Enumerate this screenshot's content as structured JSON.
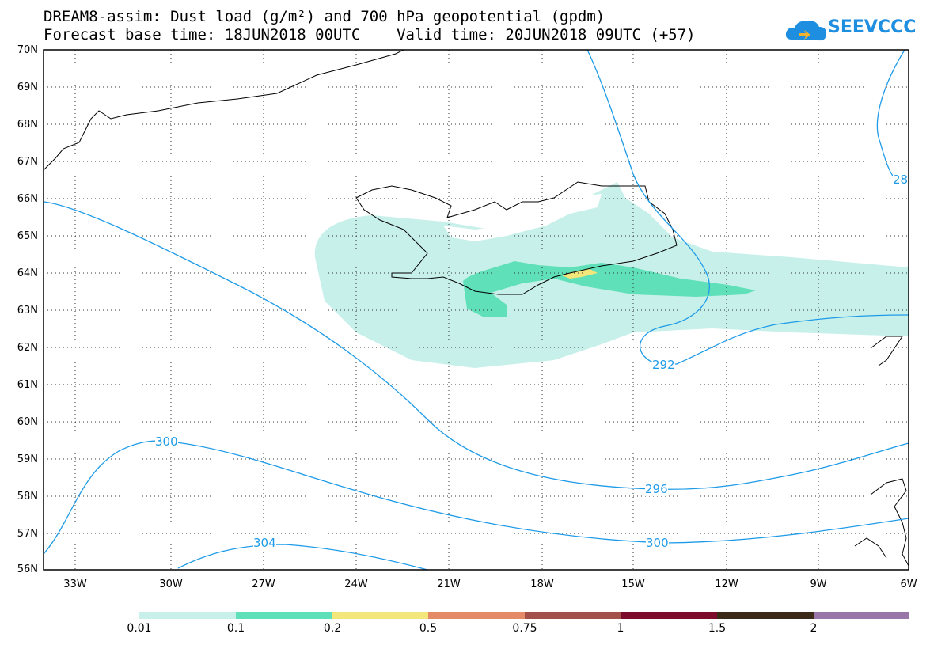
{
  "title": {
    "line1": "DREAM8-assim: Dust load (g/m²) and 700 hPa geopotential (gpdm)",
    "line2": "Forecast base time: 18JUN2018 00UTC    Valid time: 20JUN2018 09UTC (+57)"
  },
  "logo": {
    "text": "SEEVCCC",
    "icon": "cloud-logo-icon",
    "color": "#1e8fe0"
  },
  "map": {
    "lat_labels": [
      "70N",
      "69N",
      "68N",
      "67N",
      "66N",
      "65N",
      "64N",
      "63N",
      "62N",
      "61N",
      "60N",
      "59N",
      "58N",
      "57N",
      "56N"
    ],
    "lon_labels": [
      "33W",
      "30W",
      "27W",
      "24W",
      "21W",
      "18W",
      "15W",
      "12W",
      "9W",
      "6W"
    ],
    "contour_labels": {
      "c292": "292",
      "c296": "296",
      "c300a": "300",
      "c300b": "300",
      "c304": "304",
      "c28": "28"
    },
    "contour_color": "#1e9be8"
  },
  "colorbar": {
    "labels": [
      "0.01",
      "0.1",
      "0.2",
      "0.5",
      "0.75",
      "1",
      "1.5",
      "2"
    ],
    "colors": [
      "#c6f0e9",
      "#5fe0b8",
      "#f3e67a",
      "#e58a66",
      "#a4504a",
      "#7d0b2c",
      "#3c2a18",
      "#9a76a8"
    ]
  }
}
